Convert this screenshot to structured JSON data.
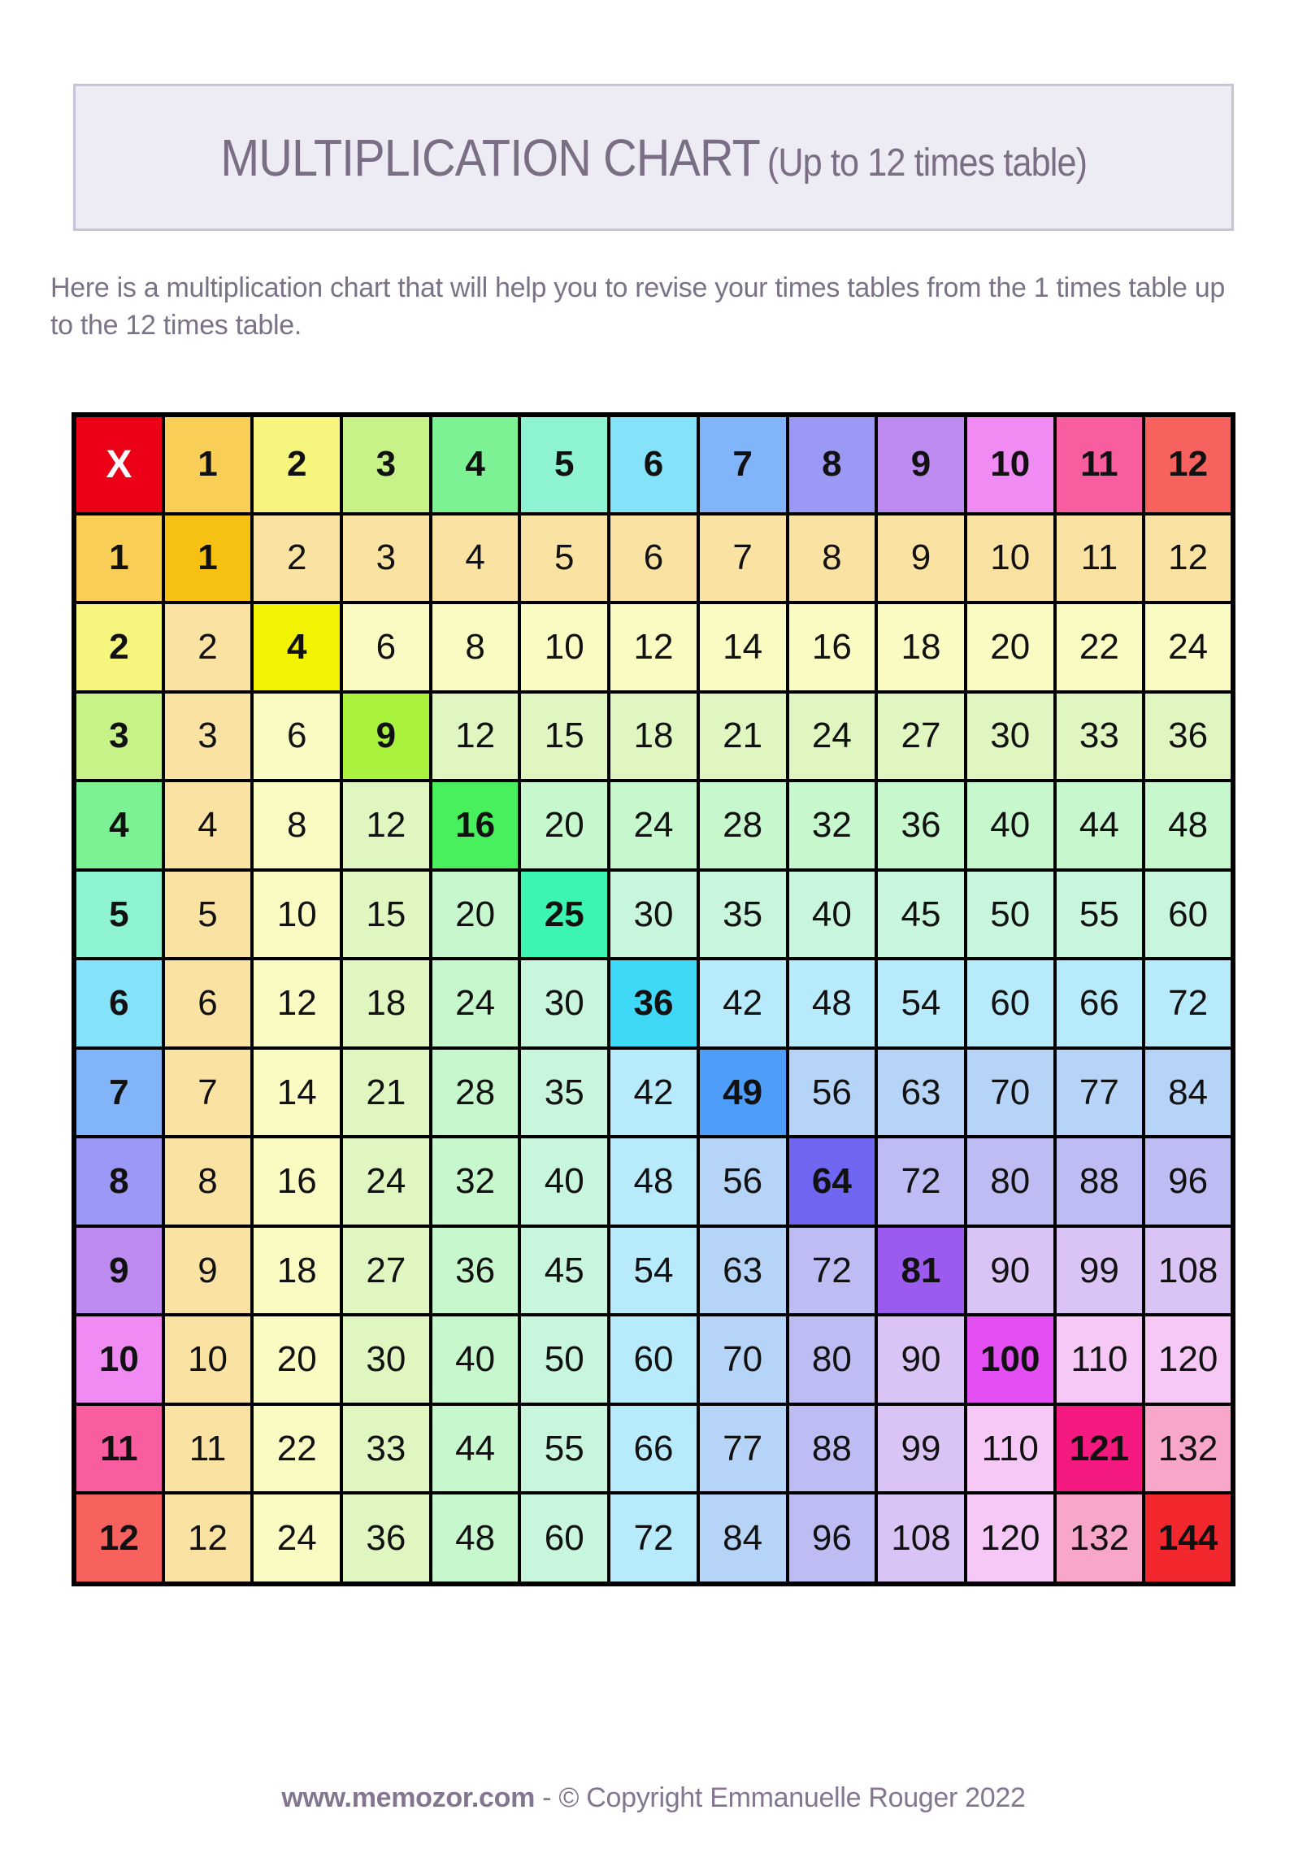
{
  "title": {
    "main": "MULTIPLICATION CHART",
    "sub": "(Up to 12 times table)"
  },
  "intro": {
    "text": "Here is a multiplication chart that will help you to revise your times tables from the 1 times table up to the 12 times table."
  },
  "chart_data": {
    "type": "table",
    "title": "Multiplication chart up to 12 times table",
    "corner_label": "X",
    "col_headers": [
      1,
      2,
      3,
      4,
      5,
      6,
      7,
      8,
      9,
      10,
      11,
      12
    ],
    "row_headers": [
      1,
      2,
      3,
      4,
      5,
      6,
      7,
      8,
      9,
      10,
      11,
      12
    ],
    "rows": [
      [
        1,
        2,
        3,
        4,
        5,
        6,
        7,
        8,
        9,
        10,
        11,
        12
      ],
      [
        2,
        4,
        6,
        8,
        10,
        12,
        14,
        16,
        18,
        20,
        22,
        24
      ],
      [
        3,
        6,
        9,
        12,
        15,
        18,
        21,
        24,
        27,
        30,
        33,
        36
      ],
      [
        4,
        8,
        12,
        16,
        20,
        24,
        28,
        32,
        36,
        40,
        44,
        48
      ],
      [
        5,
        10,
        15,
        20,
        25,
        30,
        35,
        40,
        45,
        50,
        55,
        60
      ],
      [
        6,
        12,
        18,
        24,
        30,
        36,
        42,
        48,
        54,
        60,
        66,
        72
      ],
      [
        7,
        14,
        21,
        28,
        35,
        42,
        49,
        56,
        63,
        70,
        77,
        84
      ],
      [
        8,
        16,
        24,
        32,
        40,
        48,
        56,
        64,
        72,
        80,
        88,
        96
      ],
      [
        9,
        18,
        27,
        36,
        45,
        54,
        63,
        72,
        81,
        90,
        99,
        108
      ],
      [
        10,
        20,
        30,
        40,
        50,
        60,
        70,
        80,
        90,
        100,
        110,
        120
      ],
      [
        11,
        22,
        33,
        44,
        55,
        66,
        77,
        88,
        99,
        110,
        121,
        132
      ],
      [
        12,
        24,
        36,
        48,
        60,
        72,
        84,
        96,
        108,
        120,
        132,
        144
      ]
    ],
    "layout_hints": {
      "diagonal_squares_highlighted": true,
      "headers_bold": true,
      "cell_color_follows_min_of_row_and_column": true
    }
  },
  "colors": {
    "corner_bg": "#EB0017",
    "corner_text": "#FFFFFF",
    "header": [
      "#F8CE56",
      "#F6F67E",
      "#C7F288",
      "#7DF294",
      "#8EF3D2",
      "#84E2F9",
      "#81B4F9",
      "#9C99F6",
      "#BD8BEF",
      "#F08BF3",
      "#F75D9F",
      "#F8625E"
    ],
    "diagonal": [
      "#F6C113",
      "#F2F303",
      "#A9F23D",
      "#48F05E",
      "#3CF5B3",
      "#3FD9F7",
      "#4E9EF9",
      "#6F66F2",
      "#9C5BEF",
      "#E34FF2",
      "#F3197F",
      "#F3282F"
    ],
    "pale": [
      "#FAE2A3",
      "#FAFAC3",
      "#E0F6C1",
      "#C6F7CD",
      "#C7F6DD",
      "#B7EAFA",
      "#B5D4F8",
      "#BDBDF4",
      "#DAC4F5",
      "#F6C8F6",
      "#F9A6CB",
      "#F9A6CB"
    ],
    "grid_border": "#000000",
    "title_box_bg": "#EDEBF3",
    "title_box_border": "#C7C3D8",
    "heading_text": "#796E84",
    "body_text": "#7B7287",
    "footer_text": "#837691"
  },
  "footer": {
    "site": "www.memozor.com",
    "copyright": " - © Copyright Emmanuelle Rouger 2022"
  }
}
